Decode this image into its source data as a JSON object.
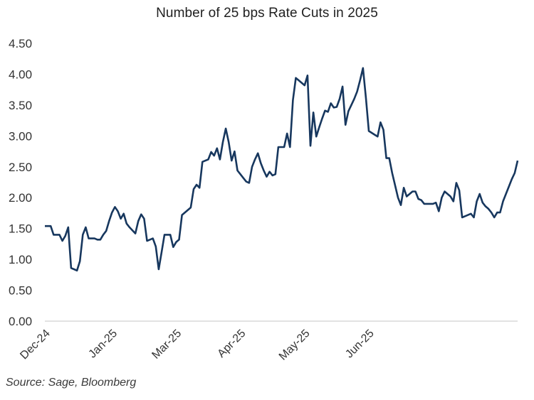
{
  "chart_data": {
    "type": "line",
    "title": "Number of 25 bps Rate Cuts in 2025",
    "xlabel": "",
    "ylabel": "",
    "ylim": [
      0,
      4.5
    ],
    "yticks": [
      "0.00",
      "0.50",
      "1.00",
      "1.50",
      "2.00",
      "2.50",
      "3.00",
      "3.50",
      "4.00",
      "4.50"
    ],
    "ytick_values": [
      0,
      0.5,
      1.0,
      1.5,
      2.0,
      2.5,
      3.0,
      3.5,
      4.0,
      4.5
    ],
    "xticks": [
      "Dec-24",
      "Jan-25",
      "Mar-25",
      "Apr-25",
      "May-25",
      "Jun-25"
    ],
    "xtick_index": [
      0,
      23,
      45,
      67,
      89,
      111
    ],
    "grid": false,
    "legend": "none",
    "series": [
      {
        "name": "Number of 25 bps Rate Cuts",
        "color": "#17375e",
        "values": [
          1.54,
          1.54,
          1.54,
          1.4,
          1.4,
          1.4,
          1.3,
          1.38,
          1.52,
          0.86,
          0.84,
          0.82,
          0.97,
          1.4,
          1.52,
          1.34,
          1.34,
          1.34,
          1.32,
          1.32,
          1.4,
          1.46,
          1.62,
          1.76,
          1.85,
          1.78,
          1.66,
          1.74,
          1.58,
          1.52,
          1.47,
          1.42,
          1.62,
          1.73,
          1.66,
          1.3,
          1.32,
          1.34,
          1.21,
          0.84,
          1.12,
          1.4,
          1.4,
          1.4,
          1.2,
          1.28,
          1.32,
          1.72,
          1.76,
          1.8,
          1.84,
          2.14,
          2.21,
          2.16,
          2.58,
          2.6,
          2.62,
          2.74,
          2.68,
          2.8,
          2.62,
          2.9,
          3.12,
          2.9,
          2.6,
          2.75,
          2.44,
          2.38,
          2.32,
          2.26,
          2.24,
          2.5,
          2.62,
          2.72,
          2.56,
          2.44,
          2.34,
          2.42,
          2.36,
          2.38,
          2.82,
          2.82,
          2.82,
          3.04,
          2.82,
          3.58,
          3.94,
          3.9,
          3.86,
          3.82,
          3.98,
          2.84,
          3.38,
          2.99,
          3.14,
          3.28,
          3.41,
          3.39,
          3.53,
          3.46,
          3.47,
          3.6,
          3.8,
          3.18,
          3.4,
          3.5,
          3.6,
          3.72,
          3.9,
          4.1,
          3.62,
          3.08,
          3.05,
          3.02,
          2.99,
          3.22,
          3.1,
          2.64,
          2.64,
          2.4,
          2.2,
          2.0,
          1.88,
          2.16,
          2.02,
          2.06,
          2.1,
          2.1,
          1.98,
          1.96,
          1.9,
          1.9,
          1.9,
          1.9,
          1.92,
          1.78,
          2.0,
          2.1,
          2.06,
          2.02,
          1.94,
          2.24,
          2.12,
          1.68,
          1.7,
          1.72,
          1.74,
          1.68,
          1.94,
          2.06,
          1.92,
          1.86,
          1.82,
          1.76,
          1.68,
          1.76,
          1.76,
          1.94,
          2.06,
          2.18,
          2.3,
          2.4,
          2.6
        ]
      }
    ]
  },
  "footer": {
    "source": "Source: Sage, Bloomberg"
  }
}
